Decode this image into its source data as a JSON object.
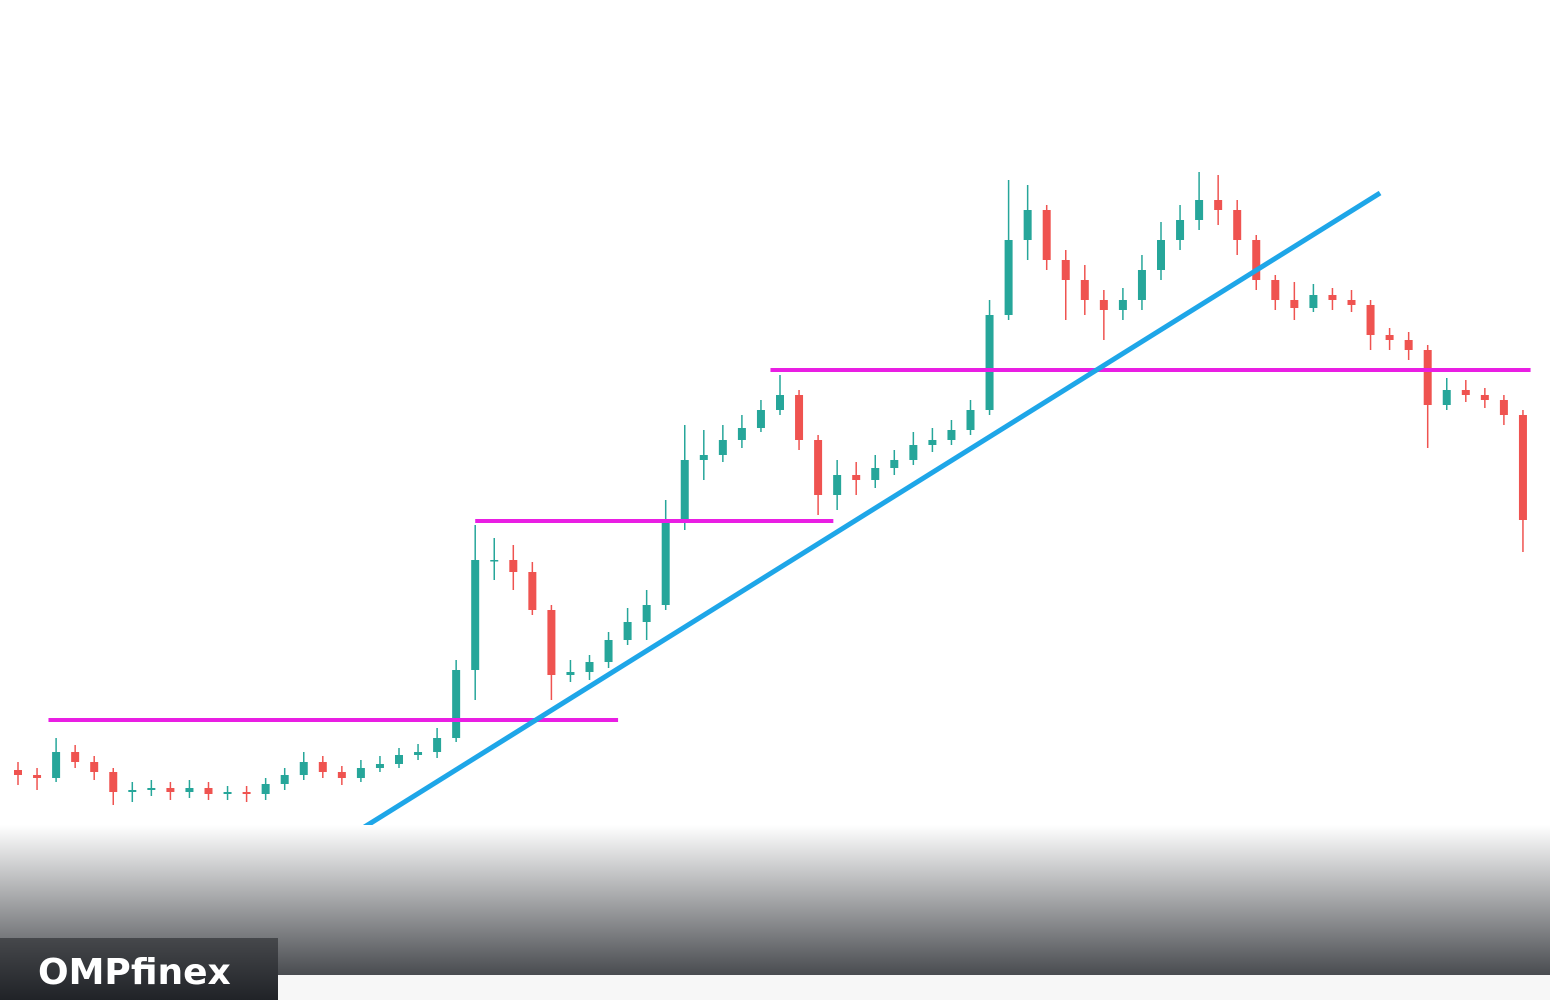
{
  "chart_data": {
    "type": "candlestick",
    "open": [
      230,
      225,
      222,
      248,
      238,
      228,
      208,
      210,
      212,
      208,
      212,
      206,
      208,
      206,
      216,
      225,
      238,
      228,
      222,
      232,
      236,
      245,
      248,
      262,
      330,
      440,
      440,
      428,
      390,
      325,
      328,
      338,
      360,
      378,
      395,
      480,
      540,
      545,
      560,
      572,
      590,
      605,
      560,
      505,
      525,
      520,
      532,
      540,
      555,
      560,
      570,
      590,
      685,
      760,
      790,
      740,
      720,
      700,
      690,
      700,
      730,
      760,
      780,
      800,
      790,
      760,
      720,
      700,
      692,
      705,
      700,
      695,
      665,
      660,
      650,
      595,
      610,
      605,
      600,
      585
    ],
    "high": [
      238,
      232,
      262,
      255,
      244,
      232,
      218,
      220,
      218,
      220,
      218,
      214,
      214,
      222,
      232,
      248,
      244,
      234,
      240,
      244,
      252,
      256,
      272,
      340,
      475,
      462,
      455,
      438,
      395,
      340,
      345,
      368,
      392,
      410,
      500,
      575,
      570,
      575,
      585,
      600,
      625,
      610,
      565,
      540,
      538,
      545,
      550,
      568,
      572,
      580,
      600,
      700,
      820,
      815,
      795,
      750,
      735,
      710,
      712,
      745,
      778,
      795,
      828,
      825,
      800,
      765,
      725,
      718,
      716,
      712,
      710,
      700,
      672,
      668,
      655,
      622,
      620,
      612,
      605,
      590
    ],
    "low": [
      215,
      210,
      218,
      232,
      220,
      195,
      198,
      204,
      200,
      202,
      200,
      200,
      198,
      200,
      210,
      220,
      222,
      215,
      218,
      228,
      232,
      240,
      242,
      258,
      300,
      420,
      410,
      385,
      300,
      318,
      320,
      332,
      355,
      360,
      390,
      470,
      520,
      538,
      552,
      568,
      585,
      550,
      485,
      490,
      505,
      512,
      525,
      535,
      548,
      555,
      565,
      585,
      680,
      740,
      730,
      680,
      685,
      660,
      680,
      690,
      720,
      750,
      770,
      775,
      745,
      710,
      690,
      680,
      688,
      690,
      688,
      650,
      650,
      640,
      552,
      590,
      598,
      592,
      575,
      448
    ],
    "close": [
      225,
      222,
      248,
      238,
      228,
      208,
      210,
      212,
      208,
      212,
      206,
      208,
      206,
      216,
      225,
      238,
      228,
      222,
      232,
      236,
      245,
      248,
      262,
      330,
      440,
      440,
      428,
      390,
      325,
      328,
      338,
      360,
      378,
      395,
      480,
      540,
      545,
      560,
      572,
      590,
      605,
      560,
      505,
      525,
      520,
      532,
      540,
      555,
      560,
      570,
      590,
      685,
      760,
      790,
      740,
      720,
      700,
      690,
      700,
      730,
      760,
      780,
      800,
      790,
      760,
      720,
      700,
      692,
      705,
      700,
      695,
      665,
      660,
      650,
      595,
      610,
      605,
      600,
      585,
      480
    ],
    "up_color": "#26a69a",
    "down_color": "#ef5350",
    "ylim": [
      0,
      1000
    ],
    "levels": [
      {
        "value": 280,
        "from": 1.6,
        "to": 31.5,
        "color": "#e91ee3"
      },
      {
        "value": 479,
        "from": 24.0,
        "to": 42.8,
        "color": "#e91ee3"
      },
      {
        "value": 630,
        "from": 39.5,
        "to": 79.4,
        "color": "#e91ee3"
      }
    ],
    "trendline": {
      "from": [
        18.1,
        172
      ],
      "to": [
        71.5,
        807
      ],
      "color": "#1ea6e8"
    }
  },
  "logo": "OMPfinex"
}
